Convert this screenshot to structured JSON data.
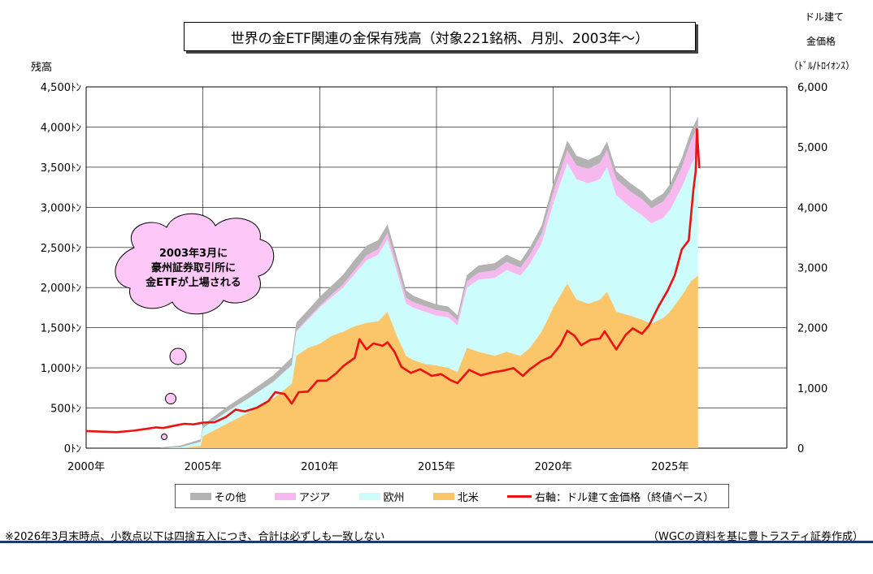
{
  "title": "世界の金ETF関連の金保有残高（対象221銘柄、月別、2003年～）",
  "left_axis_title": "残高",
  "right_axis_title": [
    "ドル建て",
    "金価格",
    "（ﾄﾞﾙ/ﾄﾛｲｵﾝｽ）"
  ],
  "callout": [
    "2003年3月に",
    "豪州証券取引所に",
    "金ETFが上場される"
  ],
  "footnote_left": "※2026年3月末時点、小数点以下は四捨五入につき、合計は必ずしも一致しない",
  "footnote_right": "（WGCの資料を基に豊トラスティ証券作成）",
  "legend": [
    {
      "label": "その他",
      "color": "#b3b3b3"
    },
    {
      "label": "アジア",
      "color": "#f7b8ef"
    },
    {
      "label": "欧州",
      "color": "#ccfcfc"
    },
    {
      "label": "北米",
      "color": "#fbc569"
    },
    {
      "label": "右軸：ドル建て金価格（終値ベース）",
      "color": "#ee1111"
    }
  ],
  "chart_data": {
    "type": "area",
    "x_unit": "year",
    "xlim": [
      2000,
      2030
    ],
    "x_ticks": [
      "2000年",
      "2005年",
      "2010年",
      "2015年",
      "2020年",
      "2025年"
    ],
    "y_left": {
      "range": [
        0,
        4500
      ],
      "ticks": [
        "0ﾄﾝ",
        "500ﾄﾝ",
        "1,000ﾄﾝ",
        "1,500ﾄﾝ",
        "2,000ﾄﾝ",
        "2,500ﾄﾝ",
        "3,000ﾄﾝ",
        "3,500ﾄﾝ",
        "4,000ﾄﾝ",
        "4,500ﾄﾝ"
      ]
    },
    "y_right": {
      "range": [
        0,
        6000
      ],
      "ticks": [
        "0",
        "1,000",
        "2,000",
        "3,000",
        "4,000",
        "5,000",
        "6,000"
      ]
    },
    "grid": true,
    "stacked_series": [
      {
        "name": "北米",
        "color": "#fbc569",
        "points": [
          [
            2003.2,
            0
          ],
          [
            2004.0,
            0
          ],
          [
            2004.9,
            30
          ],
          [
            2005.0,
            150
          ],
          [
            2006.0,
            300
          ],
          [
            2007.0,
            450
          ],
          [
            2008.0,
            620
          ],
          [
            2008.8,
            800
          ],
          [
            2009.0,
            1150
          ],
          [
            2009.5,
            1250
          ],
          [
            2010.0,
            1300
          ],
          [
            2010.5,
            1400
          ],
          [
            2011.0,
            1450
          ],
          [
            2011.5,
            1520
          ],
          [
            2012.0,
            1560
          ],
          [
            2012.5,
            1580
          ],
          [
            2012.9,
            1700
          ],
          [
            2013.3,
            1400
          ],
          [
            2013.7,
            1150
          ],
          [
            2014.0,
            1100
          ],
          [
            2014.5,
            1050
          ],
          [
            2015.0,
            1030
          ],
          [
            2015.5,
            1000
          ],
          [
            2015.9,
            950
          ],
          [
            2016.3,
            1250
          ],
          [
            2016.8,
            1200
          ],
          [
            2017.5,
            1150
          ],
          [
            2018.0,
            1200
          ],
          [
            2018.6,
            1150
          ],
          [
            2019.0,
            1250
          ],
          [
            2019.5,
            1450
          ],
          [
            2020.0,
            1750
          ],
          [
            2020.6,
            2050
          ],
          [
            2021.0,
            1850
          ],
          [
            2021.5,
            1800
          ],
          [
            2022.0,
            1850
          ],
          [
            2022.3,
            1950
          ],
          [
            2022.7,
            1700
          ],
          [
            2023.3,
            1650
          ],
          [
            2023.8,
            1600
          ],
          [
            2024.2,
            1550
          ],
          [
            2024.7,
            1620
          ],
          [
            2025.0,
            1700
          ],
          [
            2025.5,
            1900
          ],
          [
            2025.9,
            2080
          ],
          [
            2026.2,
            2150
          ]
        ]
      },
      {
        "name": "欧州",
        "color": "#ccfcfc",
        "points": [
          [
            2003.2,
            0
          ],
          [
            2004.0,
            10
          ],
          [
            2004.9,
            50
          ],
          [
            2005.0,
            100
          ],
          [
            2006.0,
            150
          ],
          [
            2007.0,
            180
          ],
          [
            2008.0,
            200
          ],
          [
            2008.8,
            230
          ],
          [
            2009.0,
            300
          ],
          [
            2009.5,
            350
          ],
          [
            2010.0,
            450
          ],
          [
            2010.5,
            480
          ],
          [
            2011.0,
            550
          ],
          [
            2011.5,
            650
          ],
          [
            2012.0,
            780
          ],
          [
            2012.5,
            830
          ],
          [
            2012.9,
            900
          ],
          [
            2013.3,
            800
          ],
          [
            2013.7,
            650
          ],
          [
            2014.0,
            650
          ],
          [
            2014.5,
            650
          ],
          [
            2015.0,
            620
          ],
          [
            2015.5,
            630
          ],
          [
            2015.9,
            580
          ],
          [
            2016.3,
            750
          ],
          [
            2016.8,
            900
          ],
          [
            2017.5,
            970
          ],
          [
            2018.0,
            1020
          ],
          [
            2018.6,
            1000
          ],
          [
            2019.0,
            1050
          ],
          [
            2019.5,
            1100
          ],
          [
            2020.0,
            1300
          ],
          [
            2020.6,
            1500
          ],
          [
            2021.0,
            1500
          ],
          [
            2021.5,
            1500
          ],
          [
            2022.0,
            1500
          ],
          [
            2022.3,
            1550
          ],
          [
            2022.7,
            1450
          ],
          [
            2023.3,
            1350
          ],
          [
            2023.8,
            1300
          ],
          [
            2024.2,
            1250
          ],
          [
            2024.7,
            1250
          ],
          [
            2025.0,
            1270
          ],
          [
            2025.5,
            1350
          ],
          [
            2025.9,
            1450
          ],
          [
            2026.2,
            1530
          ]
        ]
      },
      {
        "name": "アジア",
        "color": "#f7b8ef",
        "points": [
          [
            2003.2,
            0
          ],
          [
            2004.0,
            0
          ],
          [
            2004.9,
            0
          ],
          [
            2005.0,
            0
          ],
          [
            2006.0,
            0
          ],
          [
            2007.0,
            0
          ],
          [
            2008.0,
            5
          ],
          [
            2008.8,
            10
          ],
          [
            2009.0,
            15
          ],
          [
            2009.5,
            20
          ],
          [
            2010.0,
            25
          ],
          [
            2010.5,
            30
          ],
          [
            2011.0,
            40
          ],
          [
            2011.5,
            50
          ],
          [
            2012.0,
            60
          ],
          [
            2012.5,
            70
          ],
          [
            2012.9,
            80
          ],
          [
            2013.3,
            80
          ],
          [
            2013.7,
            75
          ],
          [
            2014.0,
            70
          ],
          [
            2014.5,
            70
          ],
          [
            2015.0,
            70
          ],
          [
            2015.5,
            65
          ],
          [
            2015.9,
            60
          ],
          [
            2016.3,
            75
          ],
          [
            2016.8,
            85
          ],
          [
            2017.5,
            95
          ],
          [
            2018.0,
            100
          ],
          [
            2018.6,
            100
          ],
          [
            2019.0,
            110
          ],
          [
            2019.5,
            120
          ],
          [
            2020.0,
            140
          ],
          [
            2020.6,
            160
          ],
          [
            2021.0,
            170
          ],
          [
            2021.5,
            180
          ],
          [
            2022.0,
            200
          ],
          [
            2022.3,
            210
          ],
          [
            2022.7,
            200
          ],
          [
            2023.3,
            200
          ],
          [
            2023.8,
            200
          ],
          [
            2024.2,
            190
          ],
          [
            2024.7,
            200
          ],
          [
            2025.0,
            220
          ],
          [
            2025.5,
            250
          ],
          [
            2025.9,
            300
          ],
          [
            2026.2,
            320
          ]
        ]
      },
      {
        "name": "その他",
        "color": "#b3b3b3",
        "points": [
          [
            2003.2,
            10
          ],
          [
            2004.0,
            20
          ],
          [
            2004.9,
            30
          ],
          [
            2005.0,
            40
          ],
          [
            2006.0,
            60
          ],
          [
            2007.0,
            70
          ],
          [
            2008.0,
            80
          ],
          [
            2008.8,
            90
          ],
          [
            2009.0,
            100
          ],
          [
            2009.5,
            100
          ],
          [
            2010.0,
            110
          ],
          [
            2010.5,
            110
          ],
          [
            2011.0,
            120
          ],
          [
            2011.5,
            130
          ],
          [
            2012.0,
            120
          ],
          [
            2012.5,
            110
          ],
          [
            2012.9,
            110
          ],
          [
            2013.3,
            100
          ],
          [
            2013.7,
            90
          ],
          [
            2014.0,
            80
          ],
          [
            2014.5,
            70
          ],
          [
            2015.0,
            70
          ],
          [
            2015.5,
            70
          ],
          [
            2015.9,
            65
          ],
          [
            2016.3,
            80
          ],
          [
            2016.8,
            90
          ],
          [
            2017.5,
            90
          ],
          [
            2018.0,
            90
          ],
          [
            2018.6,
            80
          ],
          [
            2019.0,
            90
          ],
          [
            2019.5,
            100
          ],
          [
            2020.0,
            110
          ],
          [
            2020.6,
            120
          ],
          [
            2021.0,
            120
          ],
          [
            2021.5,
            110
          ],
          [
            2022.0,
            110
          ],
          [
            2022.3,
            110
          ],
          [
            2022.7,
            100
          ],
          [
            2023.3,
            100
          ],
          [
            2023.8,
            100
          ],
          [
            2024.2,
            90
          ],
          [
            2024.7,
            100
          ],
          [
            2025.0,
            100
          ],
          [
            2025.5,
            110
          ],
          [
            2025.9,
            120
          ],
          [
            2026.2,
            130
          ]
        ]
      }
    ],
    "line_series": {
      "name": "右軸：ドル建て金価格（終値ベース）",
      "color": "#ee1111",
      "axis": "right",
      "points": [
        [
          2000.0,
          285
        ],
        [
          2000.6,
          275
        ],
        [
          2001.3,
          265
        ],
        [
          2002.0,
          290
        ],
        [
          2002.5,
          315
        ],
        [
          2003.0,
          345
        ],
        [
          2003.3,
          335
        ],
        [
          2003.8,
          375
        ],
        [
          2004.2,
          405
        ],
        [
          2004.6,
          395
        ],
        [
          2005.0,
          425
        ],
        [
          2005.5,
          430
        ],
        [
          2006.0,
          520
        ],
        [
          2006.4,
          640
        ],
        [
          2006.8,
          610
        ],
        [
          2007.3,
          670
        ],
        [
          2007.8,
          780
        ],
        [
          2008.1,
          930
        ],
        [
          2008.5,
          900
        ],
        [
          2008.8,
          740
        ],
        [
          2009.1,
          930
        ],
        [
          2009.5,
          940
        ],
        [
          2009.9,
          1120
        ],
        [
          2010.3,
          1120
        ],
        [
          2010.7,
          1240
        ],
        [
          2011.0,
          1360
        ],
        [
          2011.5,
          1500
        ],
        [
          2011.7,
          1810
        ],
        [
          2012.0,
          1640
        ],
        [
          2012.3,
          1740
        ],
        [
          2012.7,
          1700
        ],
        [
          2012.9,
          1760
        ],
        [
          2013.2,
          1600
        ],
        [
          2013.5,
          1350
        ],
        [
          2013.9,
          1250
        ],
        [
          2014.3,
          1310
        ],
        [
          2014.8,
          1200
        ],
        [
          2015.2,
          1230
        ],
        [
          2015.6,
          1130
        ],
        [
          2015.9,
          1080
        ],
        [
          2016.4,
          1300
        ],
        [
          2016.9,
          1210
        ],
        [
          2017.4,
          1260
        ],
        [
          2017.9,
          1290
        ],
        [
          2018.3,
          1330
        ],
        [
          2018.7,
          1200
        ],
        [
          2019.0,
          1310
        ],
        [
          2019.5,
          1450
        ],
        [
          2019.9,
          1520
        ],
        [
          2020.3,
          1710
        ],
        [
          2020.6,
          1950
        ],
        [
          2020.9,
          1870
        ],
        [
          2021.2,
          1710
        ],
        [
          2021.6,
          1800
        ],
        [
          2022.0,
          1820
        ],
        [
          2022.2,
          1940
        ],
        [
          2022.7,
          1640
        ],
        [
          2023.1,
          1880
        ],
        [
          2023.4,
          1990
        ],
        [
          2023.8,
          1900
        ],
        [
          2024.1,
          2040
        ],
        [
          2024.5,
          2350
        ],
        [
          2024.9,
          2620
        ],
        [
          2025.2,
          2870
        ],
        [
          2025.5,
          3300
        ],
        [
          2025.8,
          3450
        ],
        [
          2026.0,
          4300
        ],
        [
          2026.1,
          4600
        ],
        [
          2026.15,
          5300
        ],
        [
          2026.25,
          4650
        ]
      ]
    }
  }
}
